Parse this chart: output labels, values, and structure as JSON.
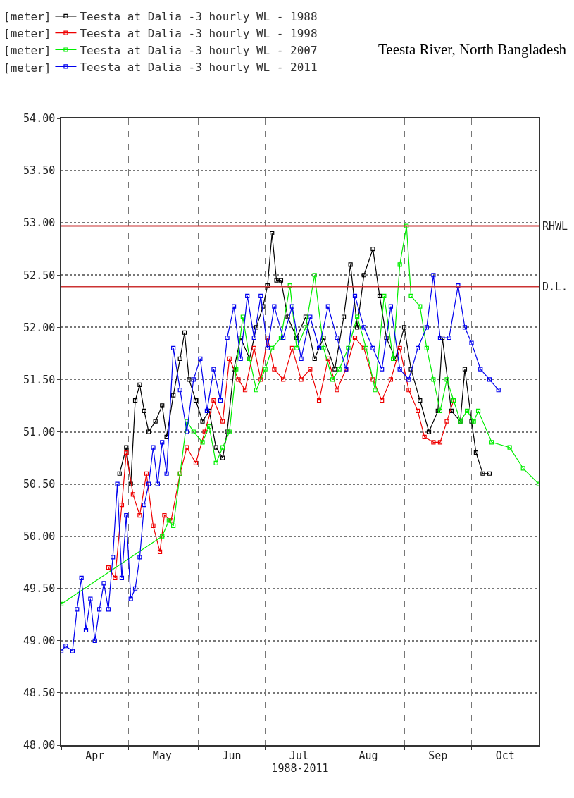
{
  "chart_data": {
    "type": "line",
    "title": "Teesta River, North Bangladesh",
    "xlabel": "1988-2011",
    "ylabel": "[meter]",
    "xlim": [
      "--04-01",
      "--10-31"
    ],
    "xticks": [
      {
        "value": "--04-01",
        "label": null
      },
      {
        "value": "--04-16",
        "label": "Apr"
      },
      {
        "value": "--05-01",
        "label": null
      },
      {
        "value": "--05-16",
        "label": "May"
      },
      {
        "value": "--06-01",
        "label": null
      },
      {
        "value": "--06-16",
        "label": "Jun"
      },
      {
        "value": "--07-01",
        "label": null
      },
      {
        "value": "--07-16",
        "label": "Jul"
      },
      {
        "value": "--08-01",
        "label": null
      },
      {
        "value": "--08-16",
        "label": "Aug"
      },
      {
        "value": "--09-01",
        "label": null
      },
      {
        "value": "--09-16",
        "label": "Sep"
      },
      {
        "value": "--10-01",
        "label": null
      },
      {
        "value": "--10-16",
        "label": "Oct"
      }
    ],
    "ylim": [
      48,
      54
    ],
    "yticks": [
      {
        "value": 48,
        "label": "48.00"
      },
      {
        "value": 48.5,
        "label": "48.50"
      },
      {
        "value": 49,
        "label": "49.00"
      },
      {
        "value": 49.5,
        "label": "49.50"
      },
      {
        "value": 50,
        "label": "50.00"
      },
      {
        "value": 50.5,
        "label": "50.50"
      },
      {
        "value": 51,
        "label": "51.00"
      },
      {
        "value": 51.5,
        "label": "51.50"
      },
      {
        "value": 52,
        "label": "52.00"
      },
      {
        "value": 52.5,
        "label": "52.50"
      },
      {
        "value": 53,
        "label": "53.00"
      },
      {
        "value": 53.5,
        "label": "53.50"
      },
      {
        "value": 54,
        "label": "54.00"
      }
    ],
    "grid": true,
    "legend": "top left",
    "marker": "square",
    "line_style": "solid",
    "ref_lines": [
      {
        "axis": "y",
        "value": 52.97,
        "label": "RHWL",
        "color": "#cc3333"
      },
      {
        "axis": "y",
        "value": 52.39,
        "label": "D.L.",
        "color": "#cc3333"
      }
    ],
    "series": [
      {
        "name": "Teesta at Dalia -3 hourly WL - 1988",
        "color": "#000000",
        "x": [
          "--04-27",
          "--04-30",
          "--05-02",
          "--05-04",
          "--05-06",
          "--05-08",
          "--05-10",
          "--05-13",
          "--05-16",
          "--05-18",
          "--05-21",
          "--05-24",
          "--05-26",
          "--05-28",
          "--05-31",
          "--06-03",
          "--06-06",
          "--06-09",
          "--06-12",
          "--06-14",
          "--06-17",
          "--06-20",
          "--06-24",
          "--06-27",
          "--06-30",
          "--07-02",
          "--07-04",
          "--07-06",
          "--07-08",
          "--07-11",
          "--07-15",
          "--07-19",
          "--07-23",
          "--07-27",
          "--08-01",
          "--08-05",
          "--08-08",
          "--08-11",
          "--08-14",
          "--08-18",
          "--08-21",
          "--08-24",
          "--08-28",
          "--09-01",
          "--09-04",
          "--09-08",
          "--09-12",
          "--09-16",
          "--09-18",
          "--09-22",
          "--09-26",
          "--09-28",
          "--10-01",
          "--10-03",
          "--10-06",
          "--10-09"
        ],
        "values": [
          50.6,
          50.85,
          50.5,
          51.3,
          51.45,
          51.2,
          51.0,
          51.1,
          51.25,
          50.95,
          51.35,
          51.7,
          51.95,
          51.5,
          51.3,
          51.1,
          51.2,
          50.85,
          50.75,
          51.0,
          51.6,
          51.9,
          51.7,
          52.0,
          52.2,
          52.4,
          52.9,
          52.45,
          52.45,
          52.1,
          51.9,
          52.1,
          51.7,
          51.9,
          51.6,
          52.1,
          52.6,
          52.0,
          52.5,
          52.75,
          52.3,
          51.9,
          51.7,
          52.0,
          51.6,
          51.3,
          51.0,
          51.2,
          51.9,
          51.2,
          51.1,
          51.6,
          51.1,
          50.8,
          50.6,
          50.6
        ]
      },
      {
        "name": "Teesta at Dalia -3 hourly WL - 1998",
        "color": "#ee0000",
        "x": [
          "--04-22",
          "--04-25",
          "--04-28",
          "--04-30",
          "--05-03",
          "--05-06",
          "--05-09",
          "--05-12",
          "--05-15",
          "--05-17",
          "--05-20",
          "--05-24",
          "--05-27",
          "--05-31",
          "--06-04",
          "--06-08",
          "--06-12",
          "--06-15",
          "--06-19",
          "--06-22",
          "--06-26",
          "--06-29",
          "--07-02",
          "--07-05",
          "--07-09",
          "--07-13",
          "--07-17",
          "--07-21",
          "--07-25",
          "--07-29",
          "--08-02",
          "--08-06",
          "--08-10",
          "--08-14",
          "--08-18",
          "--08-22",
          "--08-26",
          "--08-30",
          "--09-03",
          "--09-07",
          "--09-10",
          "--09-14",
          "--09-17",
          "--09-20",
          "--09-23"
        ],
        "values": [
          49.7,
          49.6,
          50.3,
          50.8,
          50.4,
          50.2,
          50.6,
          50.1,
          49.85,
          50.2,
          50.15,
          50.6,
          50.85,
          50.7,
          51.0,
          51.3,
          51.1,
          51.7,
          51.5,
          51.4,
          51.8,
          51.5,
          51.9,
          51.6,
          51.5,
          51.8,
          51.5,
          51.6,
          51.3,
          51.7,
          51.4,
          51.6,
          51.9,
          51.8,
          51.5,
          51.3,
          51.5,
          51.8,
          51.4,
          51.2,
          50.95,
          50.9,
          50.9,
          51.1,
          51.3
        ]
      },
      {
        "name": "Teesta at Dalia -3 hourly WL - 2007",
        "color": "#00ee00",
        "x": [
          "--04-01",
          "--05-16",
          "--05-19",
          "--05-21",
          "--05-24",
          "--05-27",
          "--05-30",
          "--06-03",
          "--06-06",
          "--06-09",
          "--06-12",
          "--06-15",
          "--06-18",
          "--06-21",
          "--06-24",
          "--06-27",
          "--07-01",
          "--07-04",
          "--07-08",
          "--07-12",
          "--07-15",
          "--07-19",
          "--07-23",
          "--07-27",
          "--07-31",
          "--08-03",
          "--08-07",
          "--08-11",
          "--08-15",
          "--08-19",
          "--08-23",
          "--08-27",
          "--08-30",
          "--09-02",
          "--09-04",
          "--09-08",
          "--09-11",
          "--09-14",
          "--09-17",
          "--09-20",
          "--09-23",
          "--09-26",
          "--09-29",
          "--10-02",
          "--10-04",
          "--10-10",
          "--10-18",
          "--10-24",
          "--10-31"
        ],
        "values": [
          49.35,
          50.0,
          50.15,
          50.1,
          50.6,
          51.1,
          51.0,
          50.9,
          51.05,
          50.7,
          50.85,
          51.0,
          51.6,
          52.1,
          51.7,
          51.4,
          51.6,
          51.8,
          51.9,
          52.4,
          51.8,
          52.0,
          52.5,
          51.8,
          51.5,
          51.6,
          51.8,
          52.1,
          51.8,
          51.4,
          52.3,
          51.7,
          52.6,
          52.97,
          52.3,
          52.2,
          51.8,
          51.5,
          51.2,
          51.5,
          51.3,
          51.1,
          51.2,
          51.1,
          51.2,
          50.9,
          50.85,
          50.65,
          50.5
        ]
      },
      {
        "name": "Teesta at Dalia -3 hourly WL - 2011",
        "color": "#0000ee",
        "x": [
          "--04-01",
          "--04-03",
          "--04-06",
          "--04-08",
          "--04-10",
          "--04-12",
          "--04-14",
          "--04-16",
          "--04-18",
          "--04-20",
          "--04-22",
          "--04-24",
          "--04-26",
          "--04-28",
          "--04-30",
          "--05-02",
          "--05-04",
          "--05-06",
          "--05-08",
          "--05-10",
          "--05-12",
          "--05-14",
          "--05-16",
          "--05-18",
          "--05-21",
          "--05-24",
          "--05-27",
          "--05-30",
          "--06-02",
          "--06-05",
          "--06-08",
          "--06-11",
          "--06-14",
          "--06-17",
          "--06-20",
          "--06-23",
          "--06-26",
          "--06-29",
          "--07-02",
          "--07-05",
          "--07-09",
          "--07-13",
          "--07-17",
          "--07-21",
          "--07-25",
          "--07-29",
          "--08-02",
          "--08-06",
          "--08-10",
          "--08-14",
          "--08-18",
          "--08-22",
          "--08-26",
          "--08-30",
          "--09-03",
          "--09-07",
          "--09-11",
          "--09-14",
          "--09-17",
          "--09-21",
          "--09-25",
          "--09-28",
          "--10-01",
          "--10-05",
          "--10-09",
          "--10-13"
        ],
        "values": [
          48.9,
          48.95,
          48.9,
          49.3,
          49.6,
          49.1,
          49.4,
          49.0,
          49.3,
          49.55,
          49.3,
          49.8,
          50.5,
          49.6,
          50.2,
          49.4,
          49.5,
          49.8,
          50.3,
          50.5,
          50.85,
          50.5,
          50.9,
          50.6,
          51.8,
          51.4,
          51.0,
          51.5,
          51.7,
          51.2,
          51.6,
          51.3,
          51.9,
          52.2,
          51.7,
          52.3,
          51.9,
          52.3,
          51.8,
          52.2,
          51.9,
          52.2,
          51.7,
          52.1,
          51.8,
          52.2,
          51.9,
          51.6,
          52.3,
          52.0,
          51.8,
          51.6,
          52.2,
          51.6,
          51.5,
          51.8,
          52.0,
          52.5,
          51.9,
          51.9,
          52.4,
          52.0,
          51.85,
          51.6,
          51.5,
          51.4
        ]
      }
    ]
  }
}
